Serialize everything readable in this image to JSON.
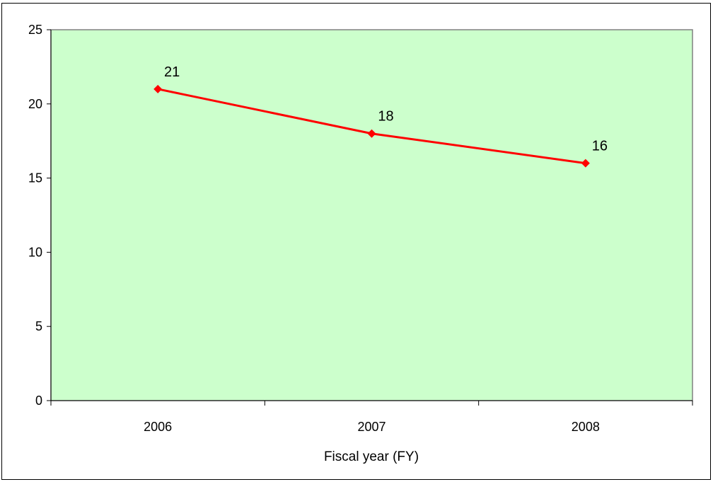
{
  "chart_data": {
    "type": "line",
    "categories": [
      "2006",
      "2007",
      "2008"
    ],
    "series": [
      {
        "values": [
          21,
          18,
          16
        ],
        "color": "#ff0000",
        "marker": "diamond"
      }
    ],
    "data_labels": [
      "21",
      "18",
      "16"
    ],
    "xlabel": "Fiscal year (FY)",
    "ylabel": "",
    "ylim": [
      0,
      25
    ],
    "yticks": [
      "0",
      "5",
      "10",
      "15",
      "20",
      "25"
    ],
    "grid": false,
    "legend": "none",
    "plot_background": "#ccffcc"
  }
}
